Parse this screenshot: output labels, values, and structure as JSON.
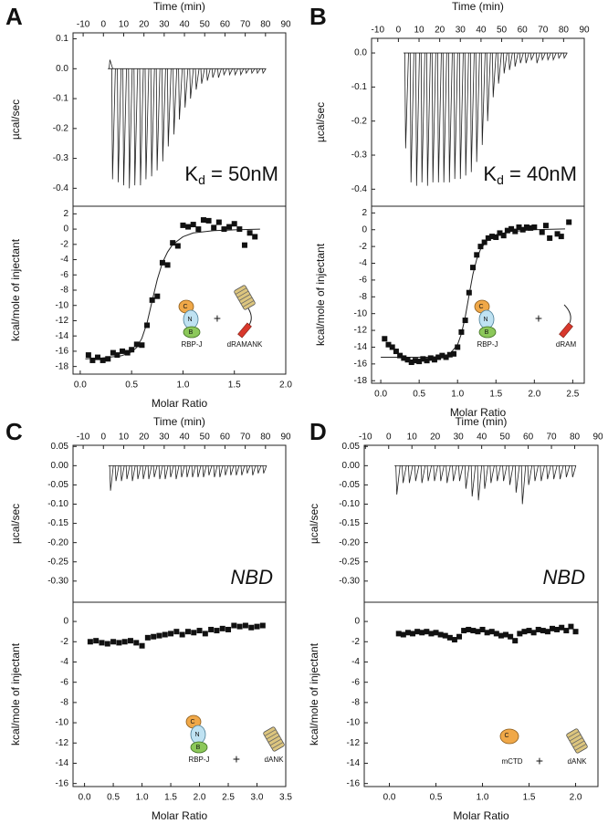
{
  "chart_data": [
    {
      "type": "spike",
      "panel": "A",
      "xlabel": "Time (min)",
      "ylabel": "µcal/sec",
      "x": [
        3.2,
        4.5,
        7.3,
        10,
        12.8,
        15.5,
        18.3,
        21,
        23.8,
        26.5,
        29.3,
        32,
        34.8,
        37.5,
        40.3,
        43,
        45.8,
        48.5,
        51.3,
        54,
        56.8,
        59.5,
        62.3,
        65,
        67.8,
        70.5,
        73.3,
        76,
        78.8
      ],
      "values": [
        0.03,
        -0.37,
        -0.38,
        -0.39,
        -0.4,
        -0.39,
        -0.39,
        -0.37,
        -0.36,
        -0.34,
        -0.31,
        -0.26,
        -0.22,
        -0.17,
        -0.13,
        -0.1,
        -0.07,
        -0.05,
        -0.04,
        -0.03,
        -0.03,
        -0.02,
        -0.02,
        -0.02,
        -0.02,
        -0.015,
        -0.015,
        -0.015,
        -0.015
      ],
      "xlim": [
        -15,
        90
      ],
      "xticks": [
        -10,
        0,
        10,
        20,
        30,
        40,
        50,
        60,
        70,
        80,
        90
      ],
      "ylim": [
        -0.46,
        0.12
      ],
      "yticks": [
        0.1,
        {
          "value": 0,
          "label": "0.0"
        },
        -0.1,
        -0.2,
        -0.3,
        -0.4
      ],
      "annotation": [
        "K",
        "d",
        " = 50nM"
      ]
    },
    {
      "type": "scatter",
      "xlabel": "Molar Ratio",
      "ylabel": "kcal/mole of injectant",
      "x": [
        0.08,
        0.12,
        0.17,
        0.22,
        0.27,
        0.32,
        0.36,
        0.41,
        0.46,
        0.5,
        0.55,
        0.6,
        0.65,
        0.7,
        0.75,
        0.8,
        0.85,
        0.9,
        0.95,
        1.0,
        1.05,
        1.1,
        1.15,
        1.2,
        1.25,
        1.3,
        1.35,
        1.4,
        1.45,
        1.5,
        1.55,
        1.6,
        1.65,
        1.7
      ],
      "values": [
        -16.5,
        -17.2,
        -16.8,
        -17.2,
        -17.0,
        -16.2,
        -16.5,
        -16.0,
        -16.2,
        -15.8,
        -15.1,
        -15.2,
        -12.6,
        -9.3,
        -8.8,
        -4.4,
        -4.7,
        -1.8,
        -2.2,
        0.5,
        0.3,
        0.6,
        0.0,
        1.2,
        1.1,
        0.2,
        0.9,
        0.0,
        0.3,
        0.7,
        0.0,
        -2.1,
        -0.5,
        -1.0
      ],
      "fit_x": [
        0.05,
        0.2,
        0.4,
        0.5,
        0.55,
        0.6,
        0.65,
        0.7,
        0.75,
        0.8,
        0.85,
        0.9,
        1.0,
        1.1,
        1.3,
        1.5,
        1.75
      ],
      "fit_values": [
        -17.0,
        -16.9,
        -16.6,
        -16.1,
        -15.5,
        -14.3,
        -12.3,
        -9.4,
        -6.6,
        -4.4,
        -3.0,
        -2.0,
        -1.0,
        -0.5,
        -0.2,
        -0.1,
        0.0
      ],
      "xlim": [
        -0.07,
        2.0
      ],
      "xticks": [
        {
          "value": 0,
          "label": "0.0"
        },
        0.5,
        {
          "value": 1,
          "label": "1.0"
        },
        1.5,
        {
          "value": 2,
          "label": "2.0"
        }
      ],
      "ylim": [
        -19,
        3
      ],
      "yticks": [
        2,
        0,
        -2,
        -4,
        -6,
        -8,
        -10,
        -12,
        -14,
        -16,
        -18
      ],
      "inset": {
        "protein": [
          "C",
          "N",
          "B"
        ],
        "protein_label": "RBP-J",
        "plus": "+",
        "ligand": "dRAMANK"
      }
    },
    {
      "type": "spike",
      "panel": "B",
      "xlabel": "Time (min)",
      "ylabel": "µcal/sec",
      "x": [
        3.5,
        6.1,
        8.8,
        11.4,
        14.1,
        16.7,
        19.4,
        22,
        24.7,
        27.3,
        30,
        32.6,
        35.3,
        37.9,
        40.6,
        43.2,
        45.9,
        48.5,
        51.2,
        53.8,
        56.5,
        59.1,
        61.8,
        64.4,
        67.1,
        69.7,
        72.4,
        75,
        77.7,
        80.3
      ],
      "values": [
        -0.28,
        -0.38,
        -0.39,
        -0.38,
        -0.39,
        -0.38,
        -0.38,
        -0.38,
        -0.38,
        -0.37,
        -0.37,
        -0.36,
        -0.35,
        -0.32,
        -0.27,
        -0.2,
        -0.13,
        -0.09,
        -0.06,
        -0.05,
        -0.04,
        -0.03,
        -0.03,
        -0.02,
        -0.03,
        -0.02,
        -0.02,
        -0.02,
        -0.015,
        -0.015
      ],
      "xlim": [
        -13,
        90
      ],
      "xticks": [
        -10,
        0,
        10,
        20,
        30,
        40,
        50,
        60,
        70,
        80,
        90
      ],
      "ylim": [
        -0.45,
        0.043
      ],
      "yticks": [
        {
          "value": 0,
          "label": "0.0"
        },
        -0.1,
        -0.2,
        -0.3,
        -0.4
      ],
      "annotation": [
        "K",
        "d",
        " = 40nM"
      ]
    },
    {
      "type": "scatter",
      "xlabel": "Molar Ratio",
      "ylabel": "kcal/mole of injectant",
      "x": [
        0.05,
        0.1,
        0.15,
        0.2,
        0.25,
        0.3,
        0.35,
        0.4,
        0.45,
        0.5,
        0.55,
        0.6,
        0.65,
        0.7,
        0.75,
        0.8,
        0.85,
        0.9,
        0.95,
        1.0,
        1.05,
        1.1,
        1.15,
        1.2,
        1.25,
        1.3,
        1.35,
        1.4,
        1.45,
        1.5,
        1.55,
        1.6,
        1.65,
        1.7,
        1.75,
        1.8,
        1.85,
        1.9,
        1.95,
        2.0,
        2.1,
        2.15,
        2.2,
        2.3,
        2.35,
        2.45
      ],
      "values": [
        -13.0,
        -13.7,
        -14.0,
        -14.5,
        -15.0,
        -15.3,
        -15.5,
        -15.8,
        -15.6,
        -15.7,
        -15.4,
        -15.6,
        -15.3,
        -15.5,
        -15.2,
        -15.0,
        -15.2,
        -14.9,
        -14.8,
        -14.0,
        -12.2,
        -10.8,
        -7.5,
        -4.5,
        -3.0,
        -2.0,
        -1.5,
        -1.0,
        -0.8,
        -0.9,
        -0.4,
        -0.7,
        -0.1,
        0.1,
        -0.2,
        0.3,
        0.0,
        0.3,
        0.2,
        0.3,
        -0.3,
        0.5,
        -1.0,
        -0.5,
        -0.8,
        0.9
      ],
      "fit_x": [
        0.0,
        0.3,
        0.6,
        0.8,
        0.9,
        1.0,
        1.05,
        1.1,
        1.15,
        1.2,
        1.25,
        1.3,
        1.4,
        1.5,
        1.7,
        2.0,
        2.4
      ],
      "fit_values": [
        -15.2,
        -15.2,
        -15.2,
        -15.1,
        -14.8,
        -13.7,
        -12.4,
        -10.4,
        -7.8,
        -5.3,
        -3.5,
        -2.3,
        -1.1,
        -0.6,
        -0.2,
        0.0,
        0.1
      ],
      "xlim": [
        -0.12,
        2.65
      ],
      "xticks": [
        {
          "value": 0,
          "label": "0.0"
        },
        0.5,
        {
          "value": 1,
          "label": "1.0"
        },
        1.5,
        {
          "value": 2,
          "label": "2.0"
        },
        2.5
      ],
      "ylim": [
        -18.3,
        2.8
      ],
      "yticks": [
        2,
        0,
        -2,
        -4,
        -6,
        -8,
        -10,
        -12,
        -14,
        -16,
        -18
      ],
      "inset": {
        "protein": [
          "C",
          "N",
          "B"
        ],
        "protein_label": "RBP-J",
        "plus": "+",
        "ligand": "dRAM"
      }
    },
    {
      "type": "spike",
      "panel": "C",
      "xlabel": "Time (min)",
      "ylabel": "µcal/sec",
      "x": [
        3.5,
        6.2,
        8.9,
        11.6,
        14.3,
        17,
        19.7,
        22.4,
        25.1,
        27.8,
        30.5,
        33.2,
        35.9,
        38.6,
        41.3,
        44,
        46.7,
        49.4,
        52.1,
        54.8,
        57.5,
        60.2,
        62.9,
        65.6,
        68.3,
        71,
        73.7,
        76.4,
        79.1
      ],
      "values": [
        -0.065,
        -0.04,
        -0.04,
        -0.035,
        -0.04,
        -0.035,
        -0.035,
        -0.035,
        -0.03,
        -0.035,
        -0.035,
        -0.03,
        -0.035,
        -0.03,
        -0.03,
        -0.03,
        -0.03,
        -0.03,
        -0.025,
        -0.03,
        -0.03,
        -0.025,
        -0.025,
        -0.025,
        -0.025,
        -0.02,
        -0.025,
        -0.02,
        -0.02
      ],
      "xlim": [
        -15,
        90
      ],
      "xticks": [
        -10,
        0,
        10,
        20,
        30,
        40,
        50,
        60,
        70,
        80,
        90
      ],
      "ylim": [
        -0.355,
        0.053
      ],
      "yticks": [
        0.05,
        {
          "value": 0,
          "label": "0.00"
        },
        -0.05,
        {
          "value": -0.1,
          "label": "-0.10"
        },
        -0.15,
        {
          "value": -0.2,
          "label": "-0.20"
        },
        -0.25,
        {
          "value": -0.3,
          "label": "-0.30"
        }
      ],
      "annotation": [
        "NBD"
      ]
    },
    {
      "type": "scatter",
      "xlabel": "Molar Ratio",
      "ylabel": "kcal/mole of injectant",
      "x": [
        0.1,
        0.2,
        0.3,
        0.4,
        0.5,
        0.6,
        0.7,
        0.8,
        0.9,
        1.0,
        1.1,
        1.2,
        1.3,
        1.4,
        1.5,
        1.6,
        1.7,
        1.8,
        1.9,
        2.0,
        2.1,
        2.2,
        2.3,
        2.4,
        2.5,
        2.6,
        2.7,
        2.8,
        2.9,
        3.0,
        3.1
      ],
      "values": [
        -2.0,
        -1.9,
        -2.1,
        -2.2,
        -2.0,
        -2.1,
        -2.0,
        -1.9,
        -2.1,
        -2.4,
        -1.6,
        -1.5,
        -1.4,
        -1.3,
        -1.2,
        -1.0,
        -1.3,
        -1.0,
        -1.1,
        -0.9,
        -1.2,
        -0.8,
        -0.9,
        -0.7,
        -0.8,
        -0.4,
        -0.5,
        -0.4,
        -0.6,
        -0.5,
        -0.4
      ],
      "xlim": [
        -0.2,
        3.5
      ],
      "xticks": [
        {
          "value": 0,
          "label": "0.0"
        },
        0.5,
        {
          "value": 1,
          "label": "1.0"
        },
        1.5,
        {
          "value": 2,
          "label": "2.0"
        },
        2.5,
        {
          "value": 3,
          "label": "3.0"
        },
        3.5
      ],
      "ylim": [
        -16.3,
        1.9
      ],
      "yticks": [
        0,
        -2,
        -4,
        -6,
        -8,
        -10,
        -12,
        -14,
        -16
      ],
      "inset": {
        "protein": [
          "C",
          "N",
          "B"
        ],
        "protein_label": "RBP-J",
        "plus": "+",
        "ligand": "dANK"
      }
    },
    {
      "type": "spike",
      "panel": "D",
      "xlabel": "Time (min)",
      "ylabel": "µcal/sec",
      "x": [
        3.5,
        6.2,
        8.9,
        11.6,
        14.3,
        17,
        19.7,
        22.4,
        25.1,
        27.8,
        30.5,
        33.2,
        35.9,
        38.6,
        41.3,
        44,
        46.7,
        49.4,
        52.1,
        54.8,
        57.5,
        60.2,
        62.9,
        65.6,
        68.3,
        71,
        73.7,
        76.4,
        79.1
      ],
      "values": [
        -0.075,
        -0.045,
        -0.045,
        -0.04,
        -0.045,
        -0.04,
        -0.04,
        -0.04,
        -0.045,
        -0.04,
        -0.04,
        -0.06,
        -0.08,
        -0.09,
        -0.06,
        -0.045,
        -0.04,
        -0.04,
        -0.05,
        -0.07,
        -0.1,
        -0.05,
        -0.04,
        -0.04,
        -0.035,
        -0.035,
        -0.035,
        -0.03,
        -0.03
      ],
      "xlim": [
        -10.5,
        90
      ],
      "xticks": [
        -10,
        0,
        10,
        20,
        30,
        40,
        50,
        60,
        70,
        80,
        90
      ],
      "ylim": [
        -0.355,
        0.053
      ],
      "yticks": [
        0.05,
        {
          "value": 0,
          "label": "0.00"
        },
        -0.05,
        {
          "value": -0.1,
          "label": "-0.10"
        },
        -0.15,
        {
          "value": -0.2,
          "label": "-0.20"
        },
        -0.25,
        {
          "value": -0.3,
          "label": "-0.30"
        }
      ],
      "annotation": [
        "NBD"
      ]
    },
    {
      "type": "scatter",
      "xlabel": "Molar Ratio",
      "ylabel": "kcal/mole of injectant",
      "x": [
        0.1,
        0.15,
        0.2,
        0.25,
        0.3,
        0.35,
        0.4,
        0.45,
        0.5,
        0.55,
        0.6,
        0.65,
        0.7,
        0.75,
        0.8,
        0.85,
        0.9,
        0.95,
        1.0,
        1.05,
        1.1,
        1.15,
        1.2,
        1.25,
        1.3,
        1.35,
        1.4,
        1.45,
        1.5,
        1.55,
        1.6,
        1.65,
        1.7,
        1.75,
        1.8,
        1.85,
        1.9,
        1.95,
        2.0
      ],
      "values": [
        -1.2,
        -1.3,
        -1.1,
        -1.2,
        -1.0,
        -1.1,
        -1.0,
        -1.2,
        -1.1,
        -1.3,
        -1.4,
        -1.6,
        -1.8,
        -1.5,
        -0.9,
        -0.8,
        -0.9,
        -1.0,
        -0.8,
        -1.1,
        -1.0,
        -1.2,
        -1.4,
        -1.3,
        -1.5,
        -1.9,
        -1.2,
        -1.0,
        -0.9,
        -1.1,
        -0.8,
        -0.9,
        -1.0,
        -0.7,
        -0.8,
        -0.6,
        -0.9,
        -0.5,
        -1.0
      ],
      "xlim": [
        -0.27,
        2.24
      ],
      "xticks": [
        {
          "value": 0,
          "label": "0.0"
        },
        0.5,
        {
          "value": 1,
          "label": "1.0"
        },
        1.5,
        {
          "value": 2,
          "label": "2.0"
        }
      ],
      "ylim": [
        -16.3,
        1.9
      ],
      "yticks": [
        0,
        -2,
        -4,
        -6,
        -8,
        -10,
        -12,
        -14,
        -16
      ],
      "inset": {
        "protein": [
          "C"
        ],
        "protein_label": "mCTD",
        "plus": "+",
        "ligand": "dANK"
      }
    }
  ]
}
